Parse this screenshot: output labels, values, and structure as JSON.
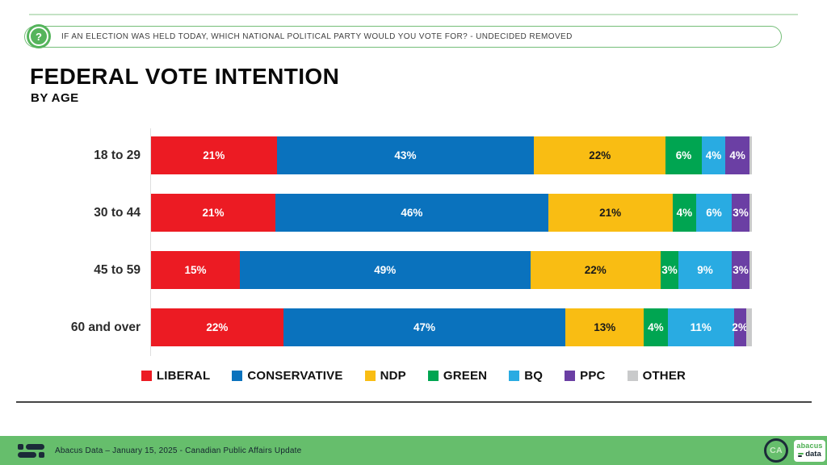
{
  "question_bar": {
    "icon": "question-mark-circle",
    "text": "IF AN ELECTION WAS HELD TODAY, WHICH NATIONAL POLITICAL PARTY WOULD YOU VOTE FOR? - UNDECIDED REMOVED"
  },
  "title": {
    "main": "FEDERAL VOTE INTENTION",
    "sub": "BY AGE"
  },
  "chart_data": {
    "type": "bar",
    "variant": "horizontal-stacked-100",
    "title": "FEDERAL VOTE INTENTION",
    "subtitle": "BY AGE",
    "categories": [
      "18 to 29",
      "30 to 44",
      "45 to 59",
      "60 and over"
    ],
    "series": [
      {
        "name": "LIBERAL",
        "color": "#ec1b23",
        "label_color": "#ffffff",
        "values": [
          21,
          21,
          15,
          22
        ]
      },
      {
        "name": "CONSERVATIVE",
        "color": "#0a72bd",
        "label_color": "#ffffff",
        "values": [
          43,
          46,
          49,
          47
        ]
      },
      {
        "name": "NDP",
        "color": "#f9bd13",
        "label_color": "#1a1a1a",
        "values": [
          22,
          21,
          22,
          13
        ]
      },
      {
        "name": "GREEN",
        "color": "#00a551",
        "label_color": "#ffffff",
        "values": [
          6,
          4,
          3,
          4
        ]
      },
      {
        "name": "BQ",
        "color": "#29abe2",
        "label_color": "#ffffff",
        "values": [
          4,
          6,
          9,
          11
        ]
      },
      {
        "name": "PPC",
        "color": "#6b3fa4",
        "label_color": "#ffffff",
        "values": [
          4,
          3,
          3,
          2
        ]
      },
      {
        "name": "OTHER",
        "color": "#c9cacb",
        "label_color": "#1a1a1a",
        "values": [
          0,
          0,
          0,
          1
        ],
        "labels_hidden": true
      }
    ],
    "value_suffix": "%",
    "legend_position": "bottom",
    "grid": false,
    "axis_line_color": "#dedede"
  },
  "footer": {
    "caption": "Abacus Data – January 15, 2025 - Canadian Public Affairs Update",
    "badge_text": "CA",
    "logo_word1": "abacus",
    "logo_word2": "data"
  },
  "theme": {
    "footer_green": "#66be6c",
    "question_border_green": "#74be78",
    "icon_green": "#55b45c",
    "top_line_green": "#c4e2c5"
  }
}
